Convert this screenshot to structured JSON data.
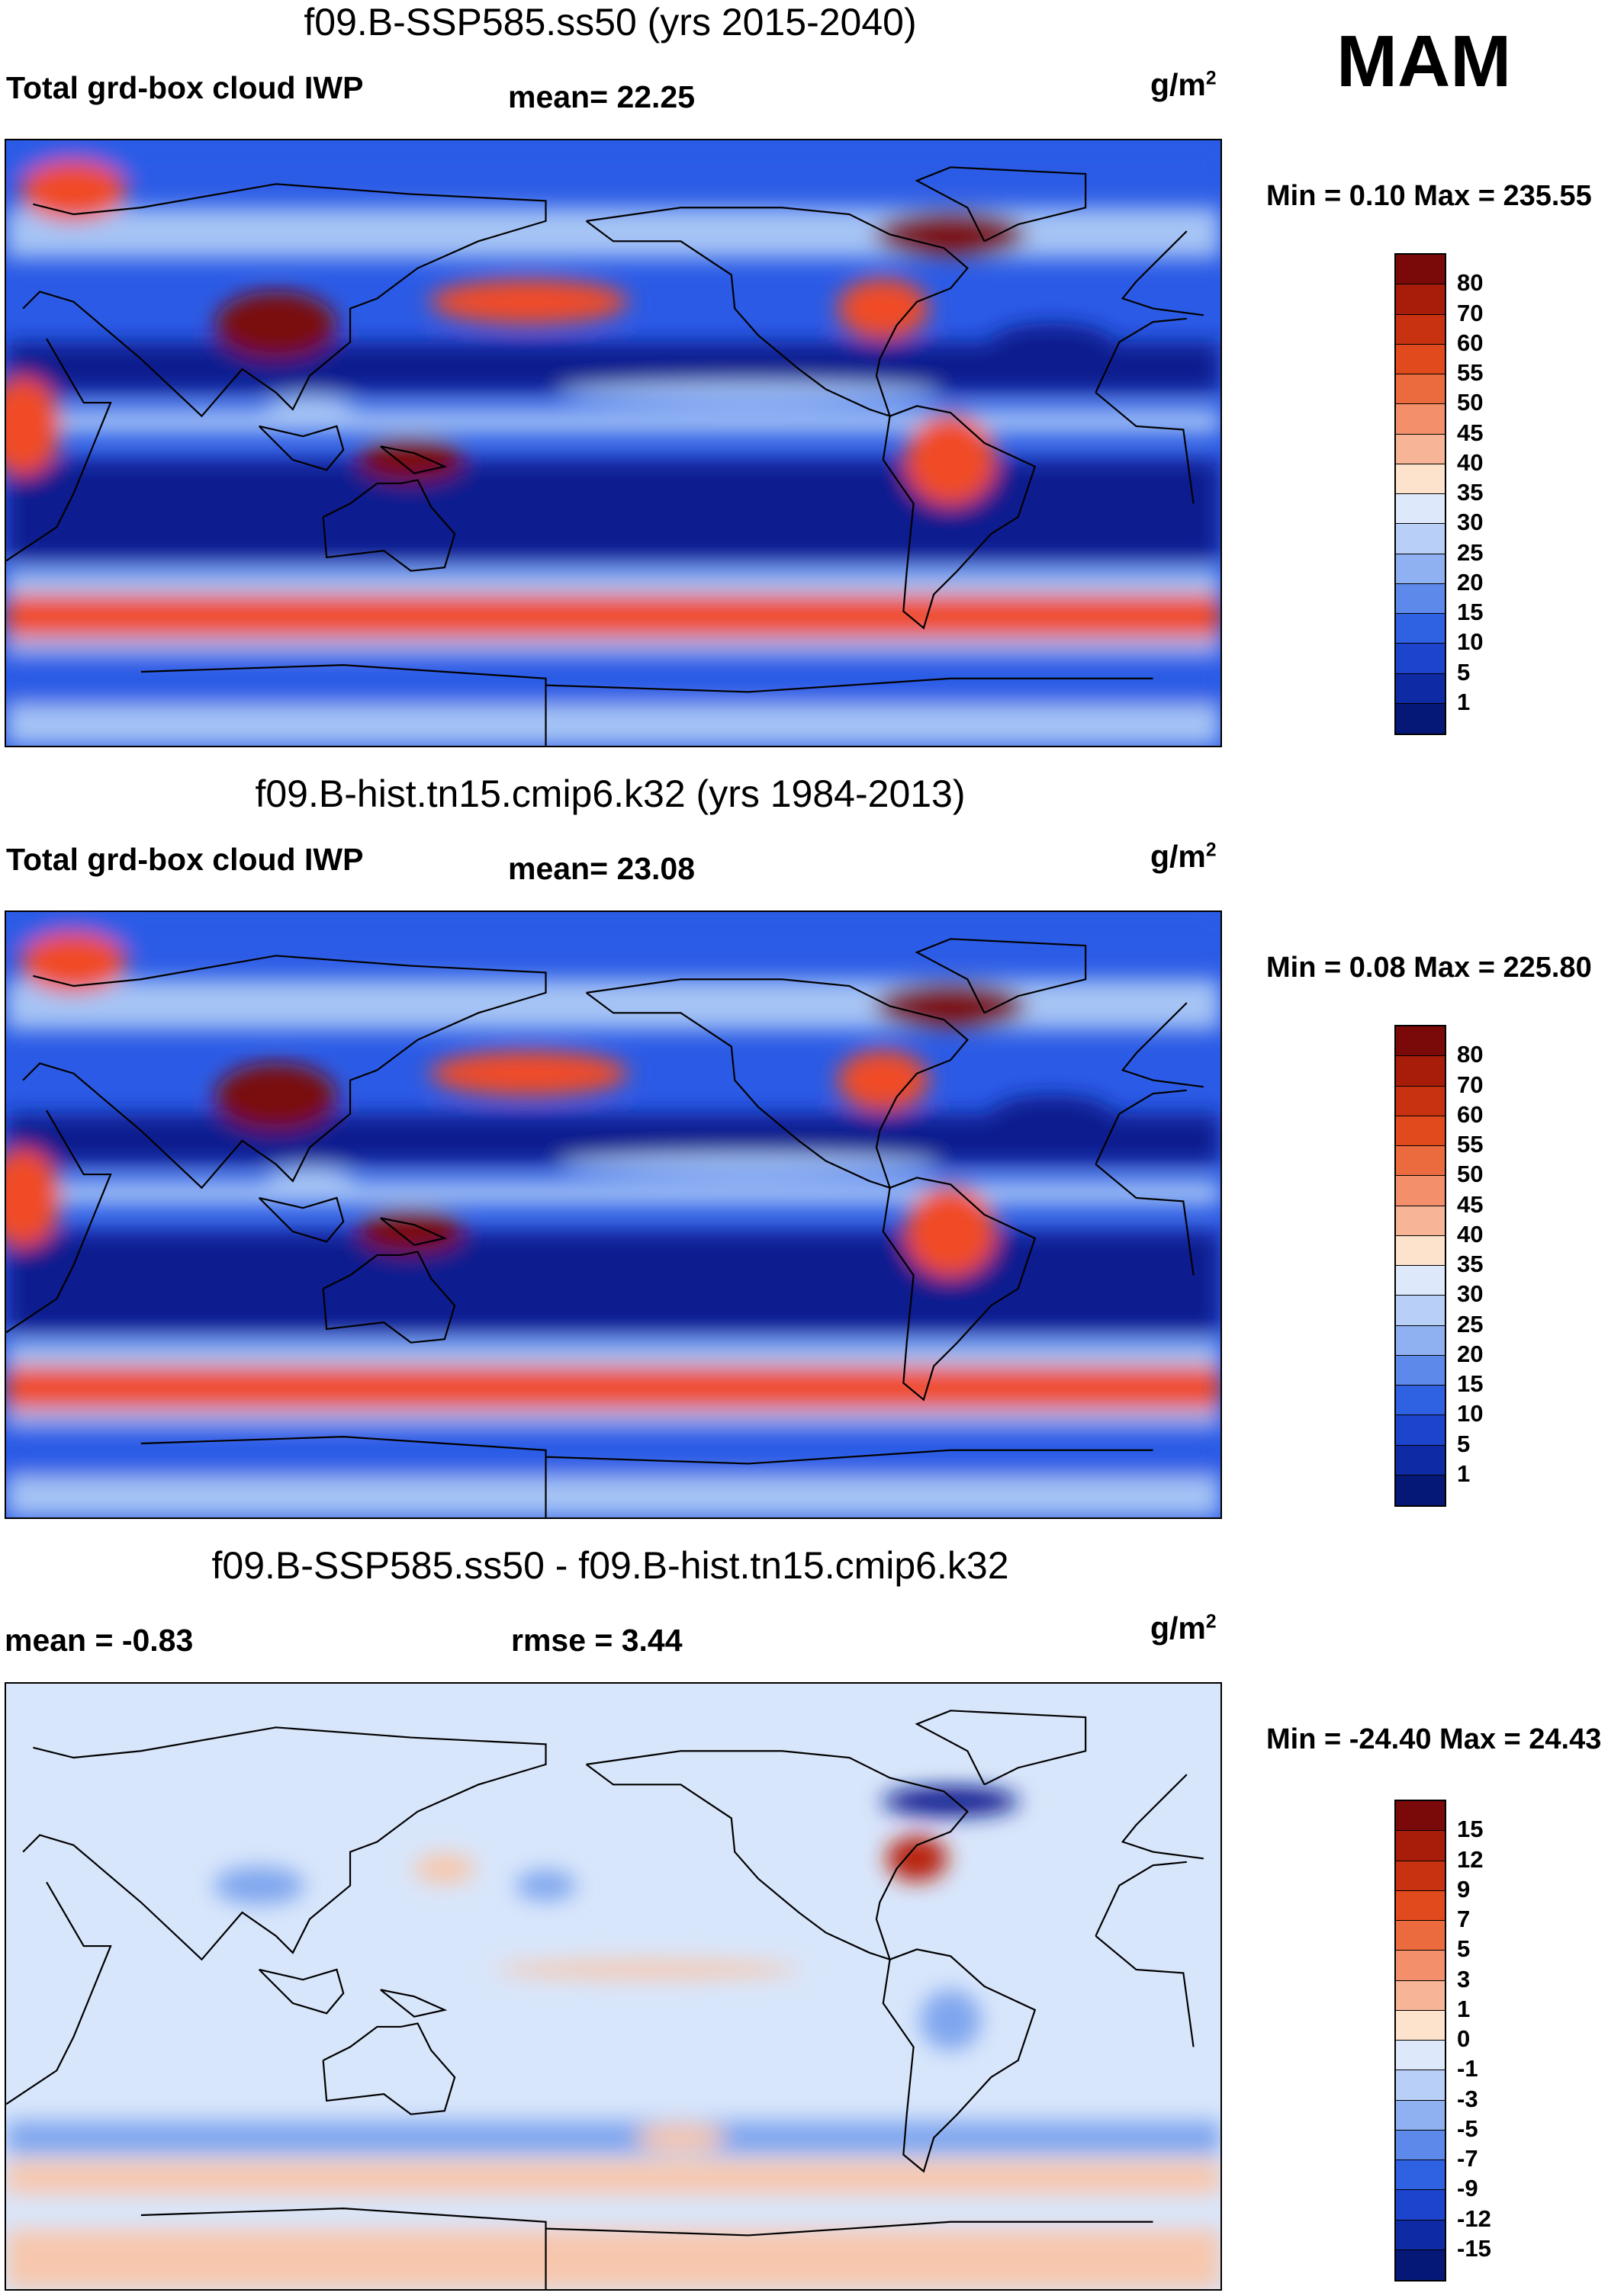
{
  "season": "MAM",
  "panels": [
    {
      "title": "f09.B-SSP585.ss50 (yrs 2015-2040)",
      "left_label": "Total grd-box cloud IWP",
      "mid_label": "mean=  22.25",
      "units_base": "g/m",
      "units_sup": "2",
      "minmax": "Min =   0.10 Max = 235.55",
      "map_colors": [
        "#0c1d8f",
        "#2b5be6",
        "#a6c4f5",
        "#f04c28",
        "#7a0a0a"
      ],
      "colorbar": {
        "labels": [
          "80",
          "70",
          "60",
          "55",
          "50",
          "45",
          "40",
          "35",
          "30",
          "25",
          "20",
          "15",
          "10",
          "5",
          "1"
        ],
        "colors": [
          "#7a0a0a",
          "#a81d0a",
          "#c83211",
          "#e14a1d",
          "#ec6b3e",
          "#f3906b",
          "#f7b497",
          "#fde3cc",
          "#dde9fb",
          "#b8cff7",
          "#8fb1f1",
          "#5d8aea",
          "#2f62e3",
          "#1c44cc",
          "#0e2aa4",
          "#061877"
        ]
      }
    },
    {
      "title": "f09.B-hist.tn15.cmip6.k32 (yrs 1984-2013)",
      "left_label": "Total grd-box cloud IWP",
      "mid_label": "mean=  23.08",
      "units_base": "g/m",
      "units_sup": "2",
      "minmax": "Min =   0.08 Max = 225.80",
      "map_colors": [
        "#0c1d8f",
        "#2b5be6",
        "#a6c4f5",
        "#f04c28",
        "#7a0a0a"
      ],
      "colorbar": {
        "labels": [
          "80",
          "70",
          "60",
          "55",
          "50",
          "45",
          "40",
          "35",
          "30",
          "25",
          "20",
          "15",
          "10",
          "5",
          "1"
        ],
        "colors": [
          "#7a0a0a",
          "#a81d0a",
          "#c83211",
          "#e14a1d",
          "#ec6b3e",
          "#f3906b",
          "#f7b497",
          "#fde3cc",
          "#dde9fb",
          "#b8cff7",
          "#8fb1f1",
          "#5d8aea",
          "#2f62e3",
          "#1c44cc",
          "#0e2aa4",
          "#061877"
        ]
      }
    },
    {
      "title": "f09.B-SSP585.ss50 - f09.B-hist.tn15.cmip6.k32",
      "left_label": "mean =  -0.83",
      "mid_label": "rmse =    3.44",
      "units_base": "g/m",
      "units_sup": "2",
      "minmax": "Min = -24.40 Max =  24.43",
      "map_colors": [
        "#0c1d8f",
        "#7fa6ee",
        "#d8e6fb",
        "#f7c7ad",
        "#b8200d"
      ],
      "colorbar": {
        "labels": [
          "15",
          "12",
          "9",
          "7",
          "5",
          "3",
          "1",
          "0",
          "-1",
          "-3",
          "-5",
          "-7",
          "-9",
          "-12",
          "-15"
        ],
        "colors": [
          "#7a0a0a",
          "#a81d0a",
          "#c83211",
          "#e14a1d",
          "#ec6b3e",
          "#f3906b",
          "#f7b497",
          "#fde3cc",
          "#dde9fb",
          "#b8cff7",
          "#8fb1f1",
          "#5d8aea",
          "#2f62e3",
          "#1c44cc",
          "#0e2aa4",
          "#061877"
        ]
      }
    }
  ]
}
